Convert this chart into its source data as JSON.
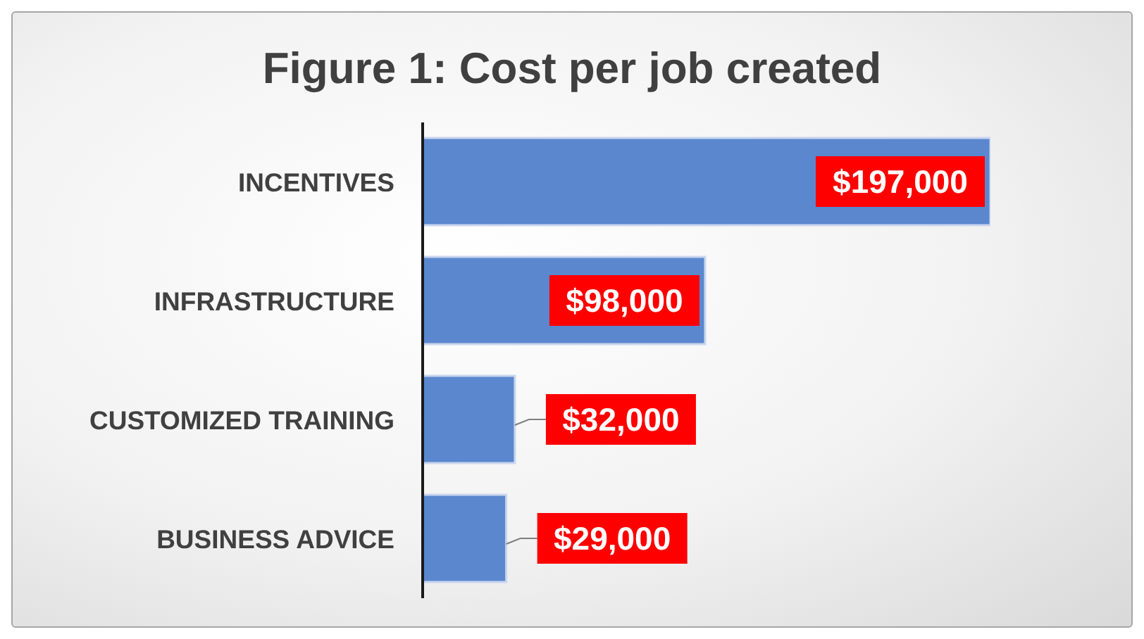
{
  "chart_data": {
    "type": "bar",
    "orientation": "horizontal",
    "title": "Figure 1: Cost per job created",
    "categories": [
      "INCENTIVES",
      "INFRASTRUCTURE",
      "CUSTOMIZED TRAINING",
      "BUSINESS ADVICE"
    ],
    "values": [
      197000,
      98000,
      32000,
      29000
    ],
    "value_labels": [
      "$197,000",
      "$98,000",
      "$32,000",
      "$29,000"
    ],
    "color": "#5b87cf"
  }
}
